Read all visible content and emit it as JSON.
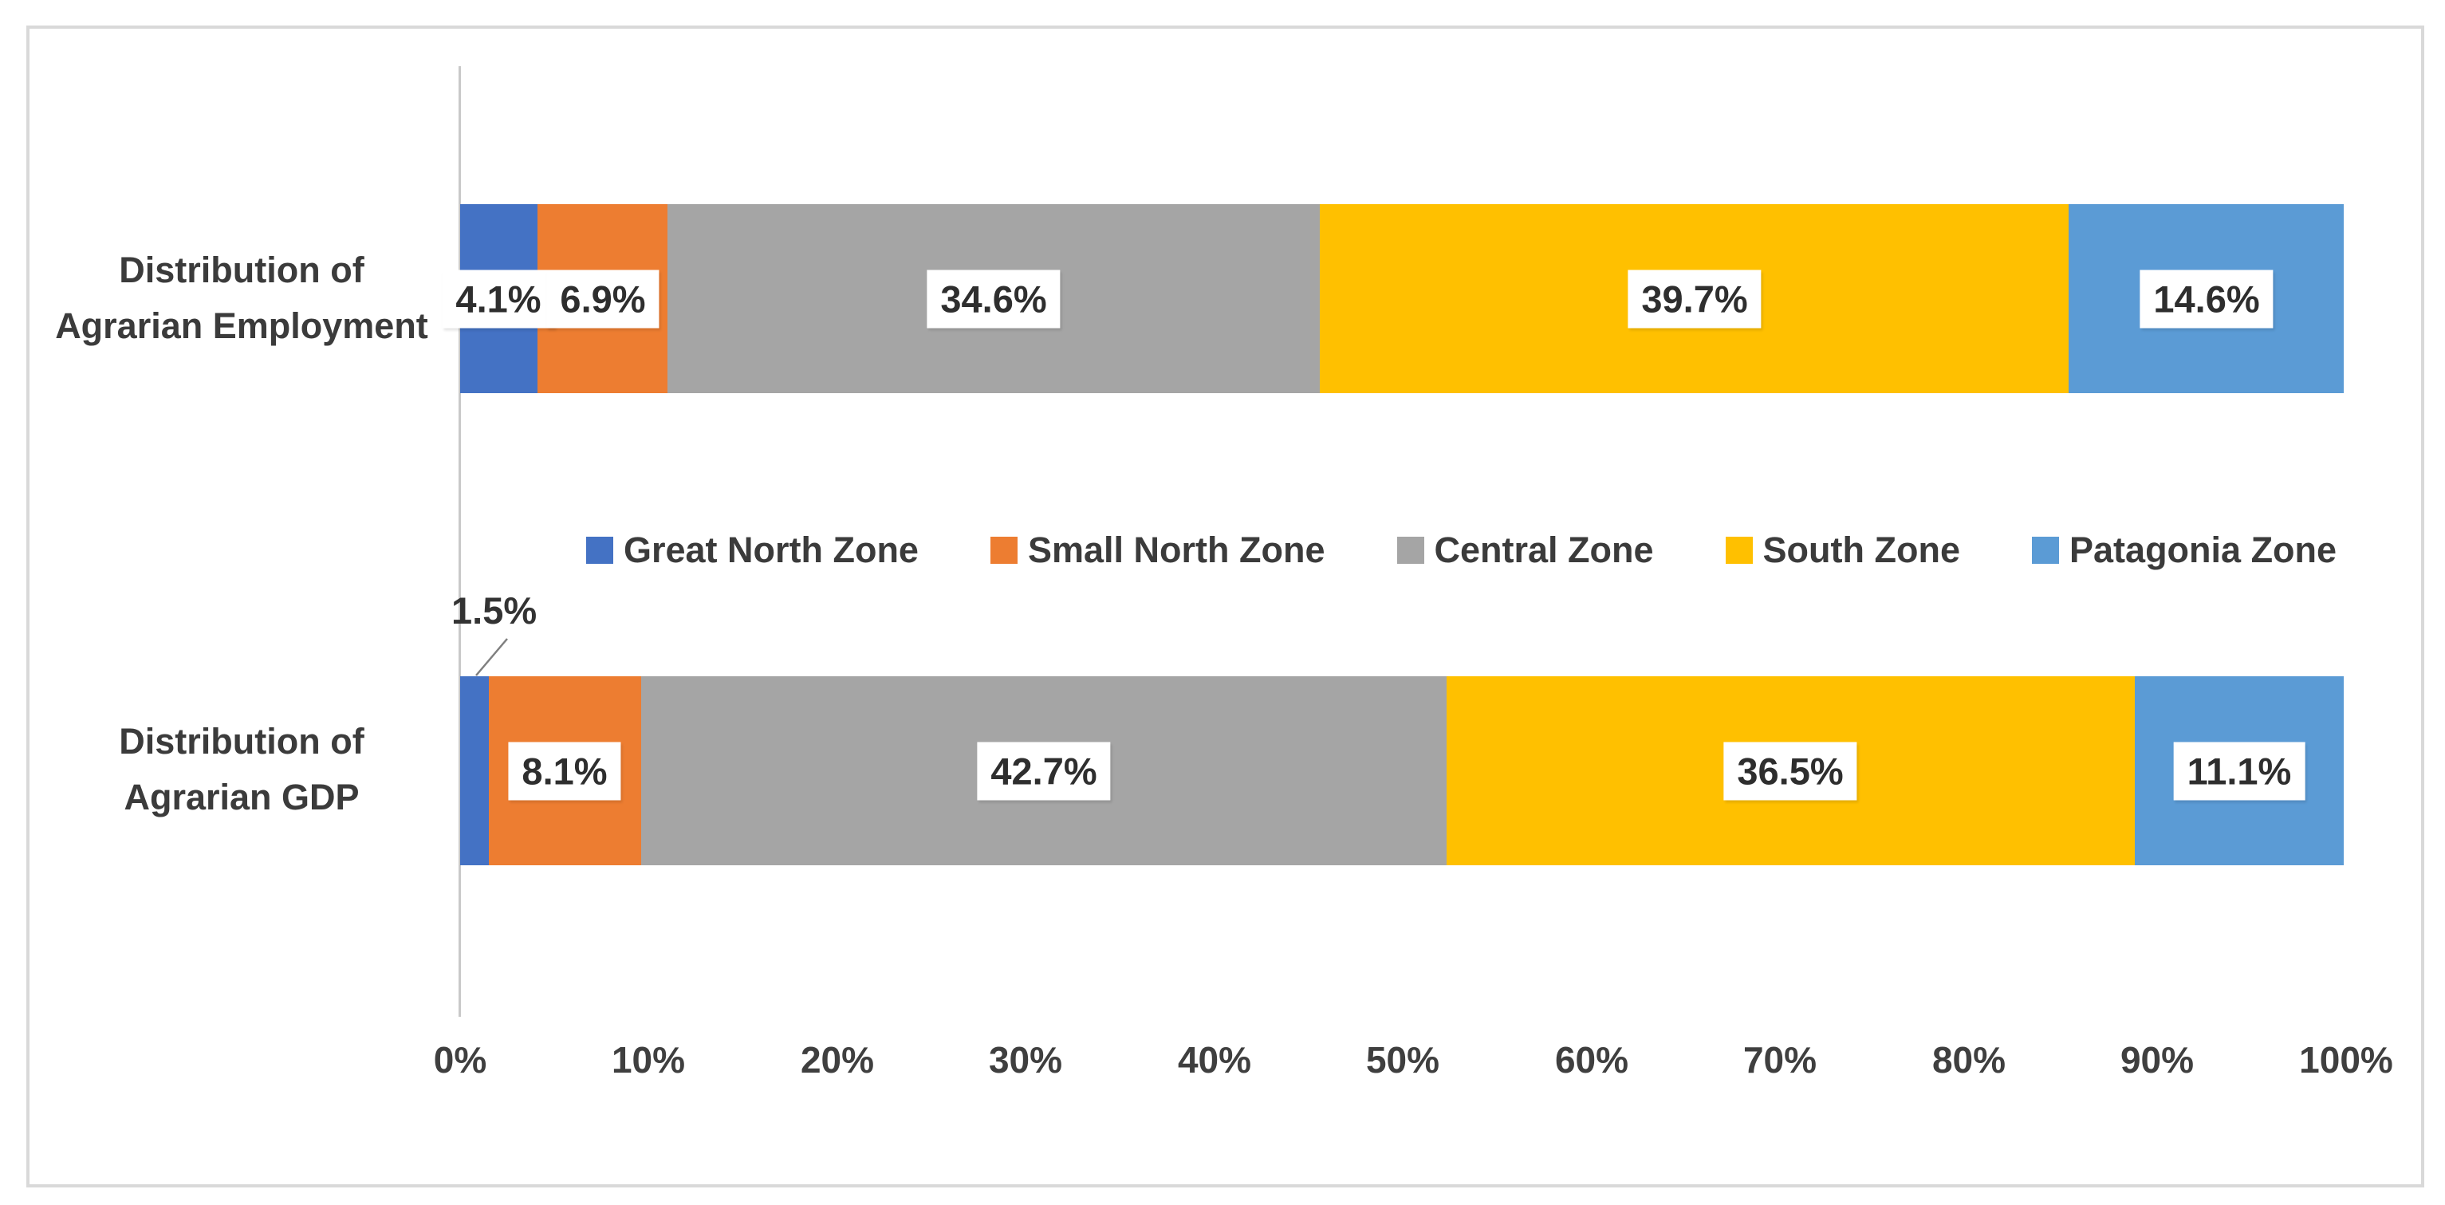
{
  "chart": {
    "background_color": "#FFFFFF",
    "frame_border_color": "#D9D9D9",
    "axis_line_color": "#C9C9C9",
    "text_color": "#3B3B3B",
    "data_label_text_color": "#2E2E2E"
  },
  "chart_data": {
    "type": "bar",
    "variant": "horizontal-stacked-percentage",
    "title": "",
    "xlabel": "",
    "ylabel": "",
    "gridlines": false,
    "xlim": [
      0,
      100
    ],
    "x_ticks": [
      "0%",
      "10%",
      "20%",
      "30%",
      "40%",
      "50%",
      "60%",
      "70%",
      "80%",
      "90%",
      "100%"
    ],
    "categories": [
      {
        "label_lines": [
          "Distribution of",
          "Agrarian Employment"
        ]
      },
      {
        "label_lines": [
          "Distribution of",
          "Agrarian GDP"
        ]
      }
    ],
    "series": [
      {
        "name": "Great North Zone",
        "color": "#4472C4",
        "values": [
          4.1,
          1.5
        ]
      },
      {
        "name": "Small North Zone",
        "color": "#ED7D31",
        "values": [
          6.9,
          8.1
        ]
      },
      {
        "name": "Central Zone",
        "color": "#A5A5A5",
        "values": [
          34.6,
          42.7
        ]
      },
      {
        "name": "South Zone",
        "color": "#FFC000",
        "values": [
          39.7,
          36.5
        ]
      },
      {
        "name": "Patagonia Zone",
        "color": "#5B9BD5",
        "values": [
          14.6,
          11.1
        ]
      }
    ],
    "data_labels": [
      [
        "4.1%",
        "6.9%",
        "34.6%",
        "39.7%",
        "14.6%"
      ],
      [
        "1.5%",
        "8.1%",
        "42.7%",
        "36.5%",
        "11.1%"
      ]
    ],
    "callout": {
      "category_index": 1,
      "series_index": 0,
      "label": "1.5%"
    },
    "legend": {
      "position": "center-between-bars",
      "entries": [
        "Great North Zone",
        "Small North Zone",
        "Central Zone",
        "South Zone",
        "Patagonia Zone"
      ]
    }
  }
}
